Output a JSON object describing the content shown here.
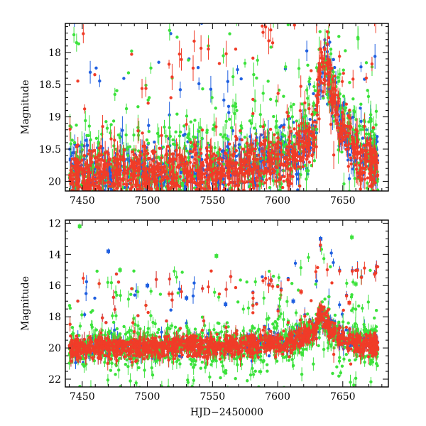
{
  "chart_data": [
    {
      "type": "scatter",
      "title": "",
      "xlabel": "",
      "ylabel": "Magnitude",
      "xlim": [
        7437,
        7685
      ],
      "ylim": [
        20.15,
        17.55
      ],
      "y_inverted": true,
      "x_ticks": [
        7450,
        7500,
        7550,
        7600,
        7650
      ],
      "x_tick_labels": [
        "7450",
        "7500",
        "7550",
        "7600",
        "7650"
      ],
      "y_ticks": [
        18,
        18.5,
        19,
        19.5,
        20
      ],
      "y_tick_labels": [
        "18",
        "18.5",
        "19",
        "19.5",
        "20"
      ],
      "grid": false,
      "legend": "none",
      "series": [
        {
          "color": "#1f5fe0",
          "trend": [
            [
              7440,
              19.9
            ],
            [
              7500,
              19.85
            ],
            [
              7560,
              19.8
            ],
            [
              7610,
              19.6
            ],
            [
              7628,
              19.2
            ],
            [
              7633,
              18.4
            ],
            [
              7637,
              18.2
            ],
            [
              7641,
              18.6
            ],
            [
              7650,
              19.2
            ],
            [
              7665,
              19.55
            ],
            [
              7680,
              19.75
            ]
          ]
        },
        {
          "color": "#3ce23c",
          "trend": [
            [
              7440,
              19.9
            ],
            [
              7500,
              19.85
            ],
            [
              7560,
              19.8
            ],
            [
              7610,
              19.6
            ],
            [
              7628,
              19.2
            ],
            [
              7633,
              18.4
            ],
            [
              7637,
              18.2
            ],
            [
              7641,
              18.6
            ],
            [
              7650,
              19.2
            ],
            [
              7665,
              19.55
            ],
            [
              7680,
              19.75
            ]
          ]
        },
        {
          "color": "#f03c28",
          "trend": [
            [
              7440,
              19.95
            ],
            [
              7500,
              19.9
            ],
            [
              7560,
              19.85
            ],
            [
              7610,
              19.65
            ],
            [
              7628,
              19.25
            ],
            [
              7633,
              18.3
            ],
            [
              7637,
              18.1
            ],
            [
              7641,
              18.6
            ],
            [
              7650,
              19.25
            ],
            [
              7665,
              19.6
            ],
            [
              7680,
              19.8
            ]
          ]
        }
      ]
    },
    {
      "type": "scatter",
      "title": "",
      "xlabel": "HJD−2450000",
      "ylabel": "Magnitude",
      "xlim": [
        7437,
        7685
      ],
      "ylim": [
        22.5,
        11.8
      ],
      "y_inverted": true,
      "x_ticks": [
        7450,
        7500,
        7550,
        7600,
        7650
      ],
      "x_tick_labels": [
        "7450",
        "7500",
        "7550",
        "7600",
        "7650"
      ],
      "y_ticks": [
        12,
        14,
        16,
        18,
        20,
        22
      ],
      "y_tick_labels": [
        "12",
        "14",
        "16",
        "18",
        "20",
        "22"
      ],
      "grid": false,
      "legend": "none",
      "series": [
        {
          "color": "#1f5fe0",
          "trend": [
            [
              7440,
              20.0
            ],
            [
              7500,
              19.95
            ],
            [
              7560,
              19.9
            ],
            [
              7610,
              19.6
            ],
            [
              7628,
              18.8
            ],
            [
              7634,
              17.8
            ],
            [
              7640,
              18.8
            ],
            [
              7650,
              19.4
            ],
            [
              7665,
              19.6
            ],
            [
              7680,
              19.7
            ]
          ],
          "outliers": [
            [
              7633,
              13.0
            ],
            [
              7470,
              13.8
            ],
            [
              7500,
              16.0
            ],
            [
              7530,
              16.8
            ],
            [
              7560,
              17.2
            ],
            [
              7612,
              17.0
            ]
          ]
        },
        {
          "color": "#3ce23c",
          "trend": [
            [
              7440,
              20.0
            ],
            [
              7500,
              19.95
            ],
            [
              7560,
              19.9
            ],
            [
              7610,
              19.6
            ],
            [
              7628,
              18.8
            ],
            [
              7634,
              17.8
            ],
            [
              7640,
              18.8
            ],
            [
              7650,
              19.4
            ],
            [
              7665,
              19.6
            ],
            [
              7680,
              19.7
            ]
          ],
          "outliers": [
            [
              7448,
              12.2
            ],
            [
              7657,
              12.9
            ],
            [
              7553,
              14.1
            ],
            [
              7479,
              15.0
            ],
            [
              7660,
              15.9
            ]
          ]
        },
        {
          "color": "#f03c28",
          "trend": [
            [
              7440,
              20.0
            ],
            [
              7500,
              19.95
            ],
            [
              7560,
              19.9
            ],
            [
              7610,
              19.7
            ],
            [
              7628,
              18.9
            ],
            [
              7634,
              17.7
            ],
            [
              7640,
              18.9
            ],
            [
              7650,
              19.45
            ],
            [
              7665,
              19.65
            ],
            [
              7680,
              19.75
            ]
          ],
          "outliers": [
            [
              7618,
              16.4
            ],
            [
              7655,
              17.1
            ]
          ]
        }
      ]
    }
  ]
}
